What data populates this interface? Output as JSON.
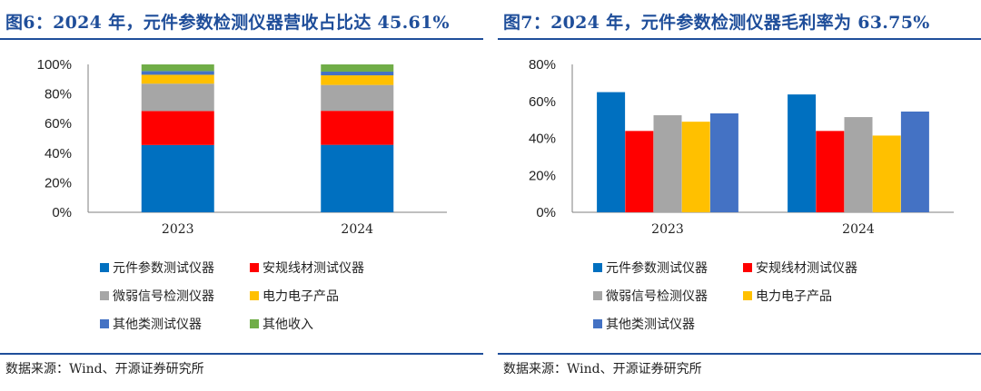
{
  "figures": [
    {
      "title": "图6：2024 年，元件参数检测仪器营收占比达 45.61%",
      "source": "数据来源：Wind、开源证券研究所"
    },
    {
      "title": "图7：2024 年，元件参数检测仪器毛利率为 63.75%",
      "source": "数据来源：Wind、开源证券研究所"
    }
  ],
  "chart_data": [
    {
      "type": "bar",
      "stacked": true,
      "categories": [
        "2023",
        "2024"
      ],
      "series": [
        {
          "name": "元件参数测试仪器",
          "values": [
            45.5,
            45.61
          ],
          "color": "#0070c0"
        },
        {
          "name": "安规线材测试仪器",
          "values": [
            23.0,
            23.0
          ],
          "color": "#ff0000"
        },
        {
          "name": "微弱信号检测仪器",
          "values": [
            18.5,
            17.5
          ],
          "color": "#a6a6a6"
        },
        {
          "name": "电力电子产品",
          "values": [
            6.0,
            6.5
          ],
          "color": "#ffc000"
        },
        {
          "name": "其他类测试仪器",
          "values": [
            2.5,
            2.5
          ],
          "color": "#4472c4"
        },
        {
          "name": "其他收入",
          "values": [
            4.5,
            4.89
          ],
          "color": "#70ad47"
        }
      ],
      "ylim": [
        0,
        100
      ],
      "yticks": [
        "0%",
        "20%",
        "40%",
        "60%",
        "80%",
        "100%"
      ],
      "grid": false,
      "legend": "bottom"
    },
    {
      "type": "bar",
      "stacked": false,
      "categories": [
        "2023",
        "2024"
      ],
      "series": [
        {
          "name": "元件参数测试仪器",
          "values": [
            65.0,
            63.75
          ],
          "color": "#0070c0"
        },
        {
          "name": "安规线材测试仪器",
          "values": [
            44.0,
            44.0
          ],
          "color": "#ff0000"
        },
        {
          "name": "微弱信号检测仪器",
          "values": [
            52.5,
            51.5
          ],
          "color": "#a6a6a6"
        },
        {
          "name": "电力电子产品",
          "values": [
            49.0,
            41.5
          ],
          "color": "#ffc000"
        },
        {
          "name": "其他类测试仪器",
          "values": [
            53.5,
            54.5
          ],
          "color": "#4472c4"
        }
      ],
      "ylim": [
        0,
        80
      ],
      "yticks": [
        "0%",
        "20%",
        "40%",
        "60%",
        "80%"
      ],
      "grid": false,
      "legend": "bottom"
    }
  ]
}
